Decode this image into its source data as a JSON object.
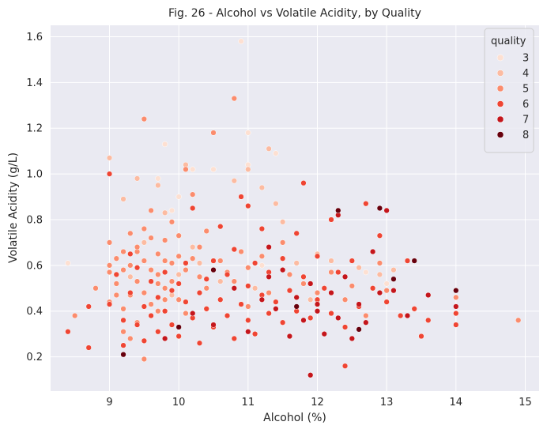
{
  "chart_data": {
    "type": "scatter",
    "title": "Fig. 26 - Alcohol vs Volatile Acidity, by Quality",
    "xlabel": "Alcohol (%)",
    "ylabel": "Volatile Acidity (g/L)",
    "xlim": [
      8.15,
      15.2
    ],
    "ylim": [
      0.05,
      1.65
    ],
    "xticks": [
      9,
      10,
      11,
      12,
      13,
      14,
      15
    ],
    "yticks": [
      0.2,
      0.4,
      0.6,
      0.8,
      1.0,
      1.2,
      1.4,
      1.6
    ],
    "ytick_labels": [
      "0.2",
      "0.4",
      "0.6",
      "0.8",
      "1.0",
      "1.2",
      "1.4",
      "1.6"
    ],
    "grid": true,
    "background": "#eaeaf2",
    "legend": {
      "title": "quality",
      "placement": "top-right",
      "items": [
        {
          "label": "3",
          "color": "#fde0d2"
        },
        {
          "label": "4",
          "color": "#fcbba1"
        },
        {
          "label": "5",
          "color": "#fb8c6d"
        },
        {
          "label": "6",
          "color": "#ef4533"
        },
        {
          "label": "7",
          "color": "#c4161c"
        },
        {
          "label": "8",
          "color": "#67000d"
        }
      ]
    },
    "series": [
      {
        "name": "3",
        "color": "#fde0d2",
        "points": [
          [
            8.4,
            0.61
          ],
          [
            9.7,
            0.98
          ],
          [
            9.8,
            1.13
          ],
          [
            10.0,
            0.9
          ],
          [
            10.2,
            1.02
          ],
          [
            10.5,
            1.02
          ],
          [
            10.9,
            1.58
          ],
          [
            11.0,
            1.18
          ],
          [
            11.2,
            0.6
          ],
          [
            11.4,
            1.09
          ],
          [
            12.7,
            0.57
          ],
          [
            13.0,
            0.52
          ],
          [
            11.0,
            1.04
          ],
          [
            9.9,
            0.84
          ]
        ]
      },
      {
        "name": "4",
        "color": "#fcbba1",
        "points": [
          [
            9.0,
            1.07
          ],
          [
            9.2,
            0.89
          ],
          [
            9.4,
            0.98
          ],
          [
            9.5,
            0.7
          ],
          [
            9.7,
            0.95
          ],
          [
            9.8,
            0.83
          ],
          [
            10.1,
            1.04
          ],
          [
            10.2,
            0.68
          ],
          [
            10.4,
            0.75
          ],
          [
            10.8,
            0.97
          ],
          [
            11.0,
            1.02
          ],
          [
            11.2,
            0.94
          ],
          [
            11.4,
            0.87
          ],
          [
            11.7,
            0.61
          ],
          [
            12.0,
            0.65
          ],
          [
            12.2,
            0.62
          ],
          [
            12.6,
            0.59
          ],
          [
            12.9,
            0.56
          ],
          [
            11.1,
            0.5
          ],
          [
            10.6,
            0.53
          ],
          [
            11.3,
            1.11
          ],
          [
            10.0,
            0.56
          ],
          [
            9.3,
            0.55
          ],
          [
            9.9,
            0.47
          ],
          [
            10.3,
            0.61
          ],
          [
            11.5,
            0.79
          ],
          [
            13.1,
            0.58
          ],
          [
            11.9,
            0.45
          ]
        ]
      },
      {
        "name": "5",
        "color": "#fb8c6d",
        "points": [
          [
            8.5,
            0.38
          ],
          [
            8.8,
            0.5
          ],
          [
            9.0,
            0.7
          ],
          [
            9.0,
            0.57
          ],
          [
            9.0,
            0.44
          ],
          [
            9.1,
            0.63
          ],
          [
            9.1,
            0.52
          ],
          [
            9.2,
            0.66
          ],
          [
            9.2,
            0.41
          ],
          [
            9.2,
            0.58
          ],
          [
            9.3,
            0.74
          ],
          [
            9.3,
            0.47
          ],
          [
            9.3,
            0.6
          ],
          [
            9.4,
            0.66
          ],
          [
            9.4,
            0.53
          ],
          [
            9.4,
            0.68
          ],
          [
            9.4,
            0.35
          ],
          [
            9.5,
            0.62
          ],
          [
            9.5,
            1.24
          ],
          [
            9.5,
            0.48
          ],
          [
            9.5,
            0.76
          ],
          [
            9.6,
            0.58
          ],
          [
            9.6,
            0.43
          ],
          [
            9.6,
            0.84
          ],
          [
            9.7,
            0.65
          ],
          [
            9.7,
            0.56
          ],
          [
            9.7,
            0.4
          ],
          [
            9.8,
            0.62
          ],
          [
            9.8,
            0.71
          ],
          [
            9.8,
            0.5
          ],
          [
            9.9,
            0.61
          ],
          [
            9.9,
            0.79
          ],
          [
            9.9,
            0.53
          ],
          [
            10.0,
            0.64
          ],
          [
            10.0,
            0.45
          ],
          [
            10.0,
            0.73
          ],
          [
            10.1,
            1.02
          ],
          [
            10.1,
            0.58
          ],
          [
            10.1,
            0.39
          ],
          [
            10.2,
            0.63
          ],
          [
            10.2,
            0.91
          ],
          [
            10.3,
            0.55
          ],
          [
            10.3,
            0.68
          ],
          [
            10.4,
            0.5
          ],
          [
            10.5,
            1.18
          ],
          [
            10.5,
            0.62
          ],
          [
            10.6,
            0.45
          ],
          [
            10.7,
            0.57
          ],
          [
            10.8,
            1.33
          ],
          [
            10.8,
            0.53
          ],
          [
            10.9,
            0.66
          ],
          [
            11.0,
            0.42
          ],
          [
            11.0,
            0.59
          ],
          [
            11.2,
            0.64
          ],
          [
            11.3,
            0.48
          ],
          [
            11.5,
            0.7
          ],
          [
            11.6,
            0.56
          ],
          [
            11.8,
            0.52
          ],
          [
            12.0,
            0.48
          ],
          [
            12.2,
            0.57
          ],
          [
            12.4,
            0.45
          ],
          [
            12.5,
            0.51
          ],
          [
            12.7,
            0.38
          ],
          [
            12.9,
            0.61
          ],
          [
            13.0,
            0.49
          ],
          [
            14.0,
            0.46
          ],
          [
            14.9,
            0.36
          ],
          [
            9.2,
            0.31
          ],
          [
            9.5,
            0.19
          ],
          [
            9.3,
            0.28
          ],
          [
            9.7,
            0.52
          ],
          [
            9.0,
            0.6
          ],
          [
            9.1,
            0.47
          ],
          [
            9.6,
            0.72
          ],
          [
            10.4,
            0.75
          ],
          [
            9.8,
            0.45
          ],
          [
            10.6,
            0.62
          ]
        ]
      },
      {
        "name": "6",
        "color": "#ef4533",
        "points": [
          [
            8.4,
            0.31
          ],
          [
            8.7,
            0.42
          ],
          [
            8.7,
            0.24
          ],
          [
            9.0,
            1.0
          ],
          [
            9.0,
            0.43
          ],
          [
            9.1,
            0.56
          ],
          [
            9.2,
            0.36
          ],
          [
            9.2,
            0.25
          ],
          [
            9.3,
            0.65
          ],
          [
            9.3,
            0.48
          ],
          [
            9.4,
            0.34
          ],
          [
            9.4,
            0.59
          ],
          [
            9.5,
            0.42
          ],
          [
            9.5,
            0.27
          ],
          [
            9.6,
            0.53
          ],
          [
            9.6,
            0.38
          ],
          [
            9.7,
            0.46
          ],
          [
            9.7,
            0.31
          ],
          [
            9.8,
            0.57
          ],
          [
            9.8,
            0.4
          ],
          [
            9.9,
            0.49
          ],
          [
            9.9,
            0.34
          ],
          [
            10.0,
            0.52
          ],
          [
            10.0,
            0.29
          ],
          [
            10.1,
            0.44
          ],
          [
            10.1,
            0.61
          ],
          [
            10.2,
            0.37
          ],
          [
            10.2,
            0.85
          ],
          [
            10.3,
            0.48
          ],
          [
            10.3,
            0.26
          ],
          [
            10.4,
            0.54
          ],
          [
            10.4,
            0.41
          ],
          [
            10.5,
            0.33
          ],
          [
            10.5,
            0.62
          ],
          [
            10.6,
            0.45
          ],
          [
            10.6,
            0.77
          ],
          [
            10.7,
            0.38
          ],
          [
            10.7,
            0.56
          ],
          [
            10.8,
            0.28
          ],
          [
            10.8,
            0.67
          ],
          [
            10.9,
            0.43
          ],
          [
            10.9,
            0.9
          ],
          [
            11.0,
            0.51
          ],
          [
            11.0,
            0.36
          ],
          [
            11.0,
            0.86
          ],
          [
            11.1,
            0.61
          ],
          [
            11.1,
            0.3
          ],
          [
            11.2,
            0.47
          ],
          [
            11.2,
            0.76
          ],
          [
            11.3,
            0.39
          ],
          [
            11.3,
            0.57
          ],
          [
            11.4,
            0.44
          ],
          [
            11.5,
            0.35
          ],
          [
            11.5,
            0.63
          ],
          [
            11.6,
            0.49
          ],
          [
            11.7,
            0.4
          ],
          [
            11.7,
            0.74
          ],
          [
            11.8,
            0.55
          ],
          [
            11.8,
            0.96
          ],
          [
            11.9,
            0.37
          ],
          [
            12.0,
            0.45
          ],
          [
            12.0,
            0.64
          ],
          [
            12.1,
            0.5
          ],
          [
            12.2,
            0.8
          ],
          [
            12.2,
            0.39
          ],
          [
            12.3,
            0.57
          ],
          [
            12.4,
            0.33
          ],
          [
            12.4,
            0.16
          ],
          [
            12.5,
            0.62
          ],
          [
            12.6,
            0.42
          ],
          [
            12.7,
            0.87
          ],
          [
            12.8,
            0.5
          ],
          [
            12.9,
            0.73
          ],
          [
            13.0,
            0.44
          ],
          [
            13.2,
            0.38
          ],
          [
            13.3,
            0.62
          ],
          [
            13.4,
            0.41
          ],
          [
            13.5,
            0.29
          ],
          [
            13.6,
            0.36
          ],
          [
            14.0,
            0.39
          ],
          [
            14.0,
            0.34
          ]
        ]
      },
      {
        "name": "7",
        "color": "#c4161c",
        "points": [
          [
            9.8,
            0.28
          ],
          [
            10.2,
            0.39
          ],
          [
            10.5,
            0.34
          ],
          [
            10.8,
            0.5
          ],
          [
            11.0,
            0.31
          ],
          [
            11.2,
            0.45
          ],
          [
            11.3,
            0.68
          ],
          [
            11.4,
            0.41
          ],
          [
            11.5,
            0.58
          ],
          [
            11.6,
            0.29
          ],
          [
            11.7,
            0.46
          ],
          [
            11.8,
            0.36
          ],
          [
            11.9,
            0.12
          ],
          [
            11.9,
            0.52
          ],
          [
            12.0,
            0.4
          ],
          [
            12.1,
            0.3
          ],
          [
            12.2,
            0.48
          ],
          [
            12.3,
            0.82
          ],
          [
            12.3,
            0.37
          ],
          [
            12.4,
            0.55
          ],
          [
            12.5,
            0.28
          ],
          [
            12.6,
            0.43
          ],
          [
            12.7,
            0.35
          ],
          [
            12.8,
            0.66
          ],
          [
            12.9,
            0.48
          ],
          [
            13.0,
            0.84
          ],
          [
            13.1,
            0.49
          ],
          [
            13.3,
            0.38
          ],
          [
            13.4,
            0.62
          ],
          [
            13.6,
            0.47
          ],
          [
            14.0,
            0.49
          ],
          [
            14.0,
            0.42
          ],
          [
            12.0,
            0.43
          ],
          [
            11.3,
            0.55
          ]
        ]
      },
      {
        "name": "8",
        "color": "#67000d",
        "points": [
          [
            9.2,
            0.21
          ],
          [
            10.0,
            0.33
          ],
          [
            10.5,
            0.58
          ],
          [
            11.7,
            0.42
          ],
          [
            12.6,
            0.32
          ],
          [
            12.9,
            0.85
          ],
          [
            13.1,
            0.54
          ],
          [
            13.4,
            0.62
          ],
          [
            14.0,
            0.49
          ],
          [
            12.3,
            0.84
          ]
        ]
      }
    ]
  }
}
